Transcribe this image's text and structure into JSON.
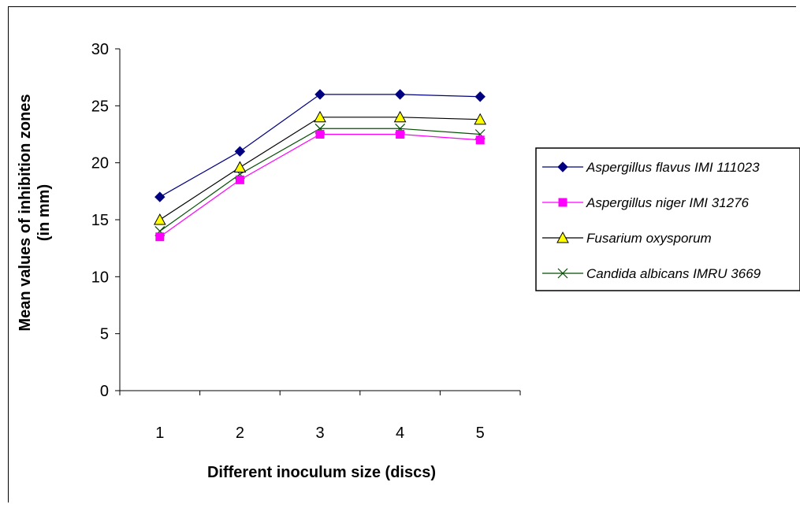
{
  "chart_data": {
    "type": "line",
    "title": "",
    "xlabel": "Different inoculum size (discs)",
    "ylabel_line1": "Mean values of inhibition zones",
    "ylabel_line2": "(in mm)",
    "categories": [
      "1",
      "2",
      "3",
      "4",
      "5"
    ],
    "yticks": [
      "0",
      "5",
      "10",
      "15",
      "20",
      "25",
      "30"
    ],
    "ylim": [
      0,
      30
    ],
    "grid": false,
    "legend_position": "right",
    "series": [
      {
        "name": "Aspergillus flavus IMI 111023",
        "values": [
          17.0,
          21.0,
          26.0,
          26.0,
          25.8
        ],
        "color": "#000080",
        "marker": "diamond",
        "marker_fill": "#000080"
      },
      {
        "name": "Aspergillus niger IMI 31276",
        "values": [
          13.5,
          18.5,
          22.5,
          22.5,
          22.0
        ],
        "color": "#ff00ff",
        "marker": "square",
        "marker_fill": "#ff00ff"
      },
      {
        "name": "Fusarium oxysporum",
        "values": [
          15.0,
          19.6,
          24.0,
          24.0,
          23.8
        ],
        "color": "#000000",
        "marker": "triangle",
        "marker_fill": "#ffff00"
      },
      {
        "name": "Candida albicans IMRU 3669",
        "values": [
          14.0,
          19.0,
          23.0,
          23.0,
          22.5
        ],
        "color": "#004d00",
        "marker": "x",
        "marker_fill": "none"
      }
    ]
  }
}
